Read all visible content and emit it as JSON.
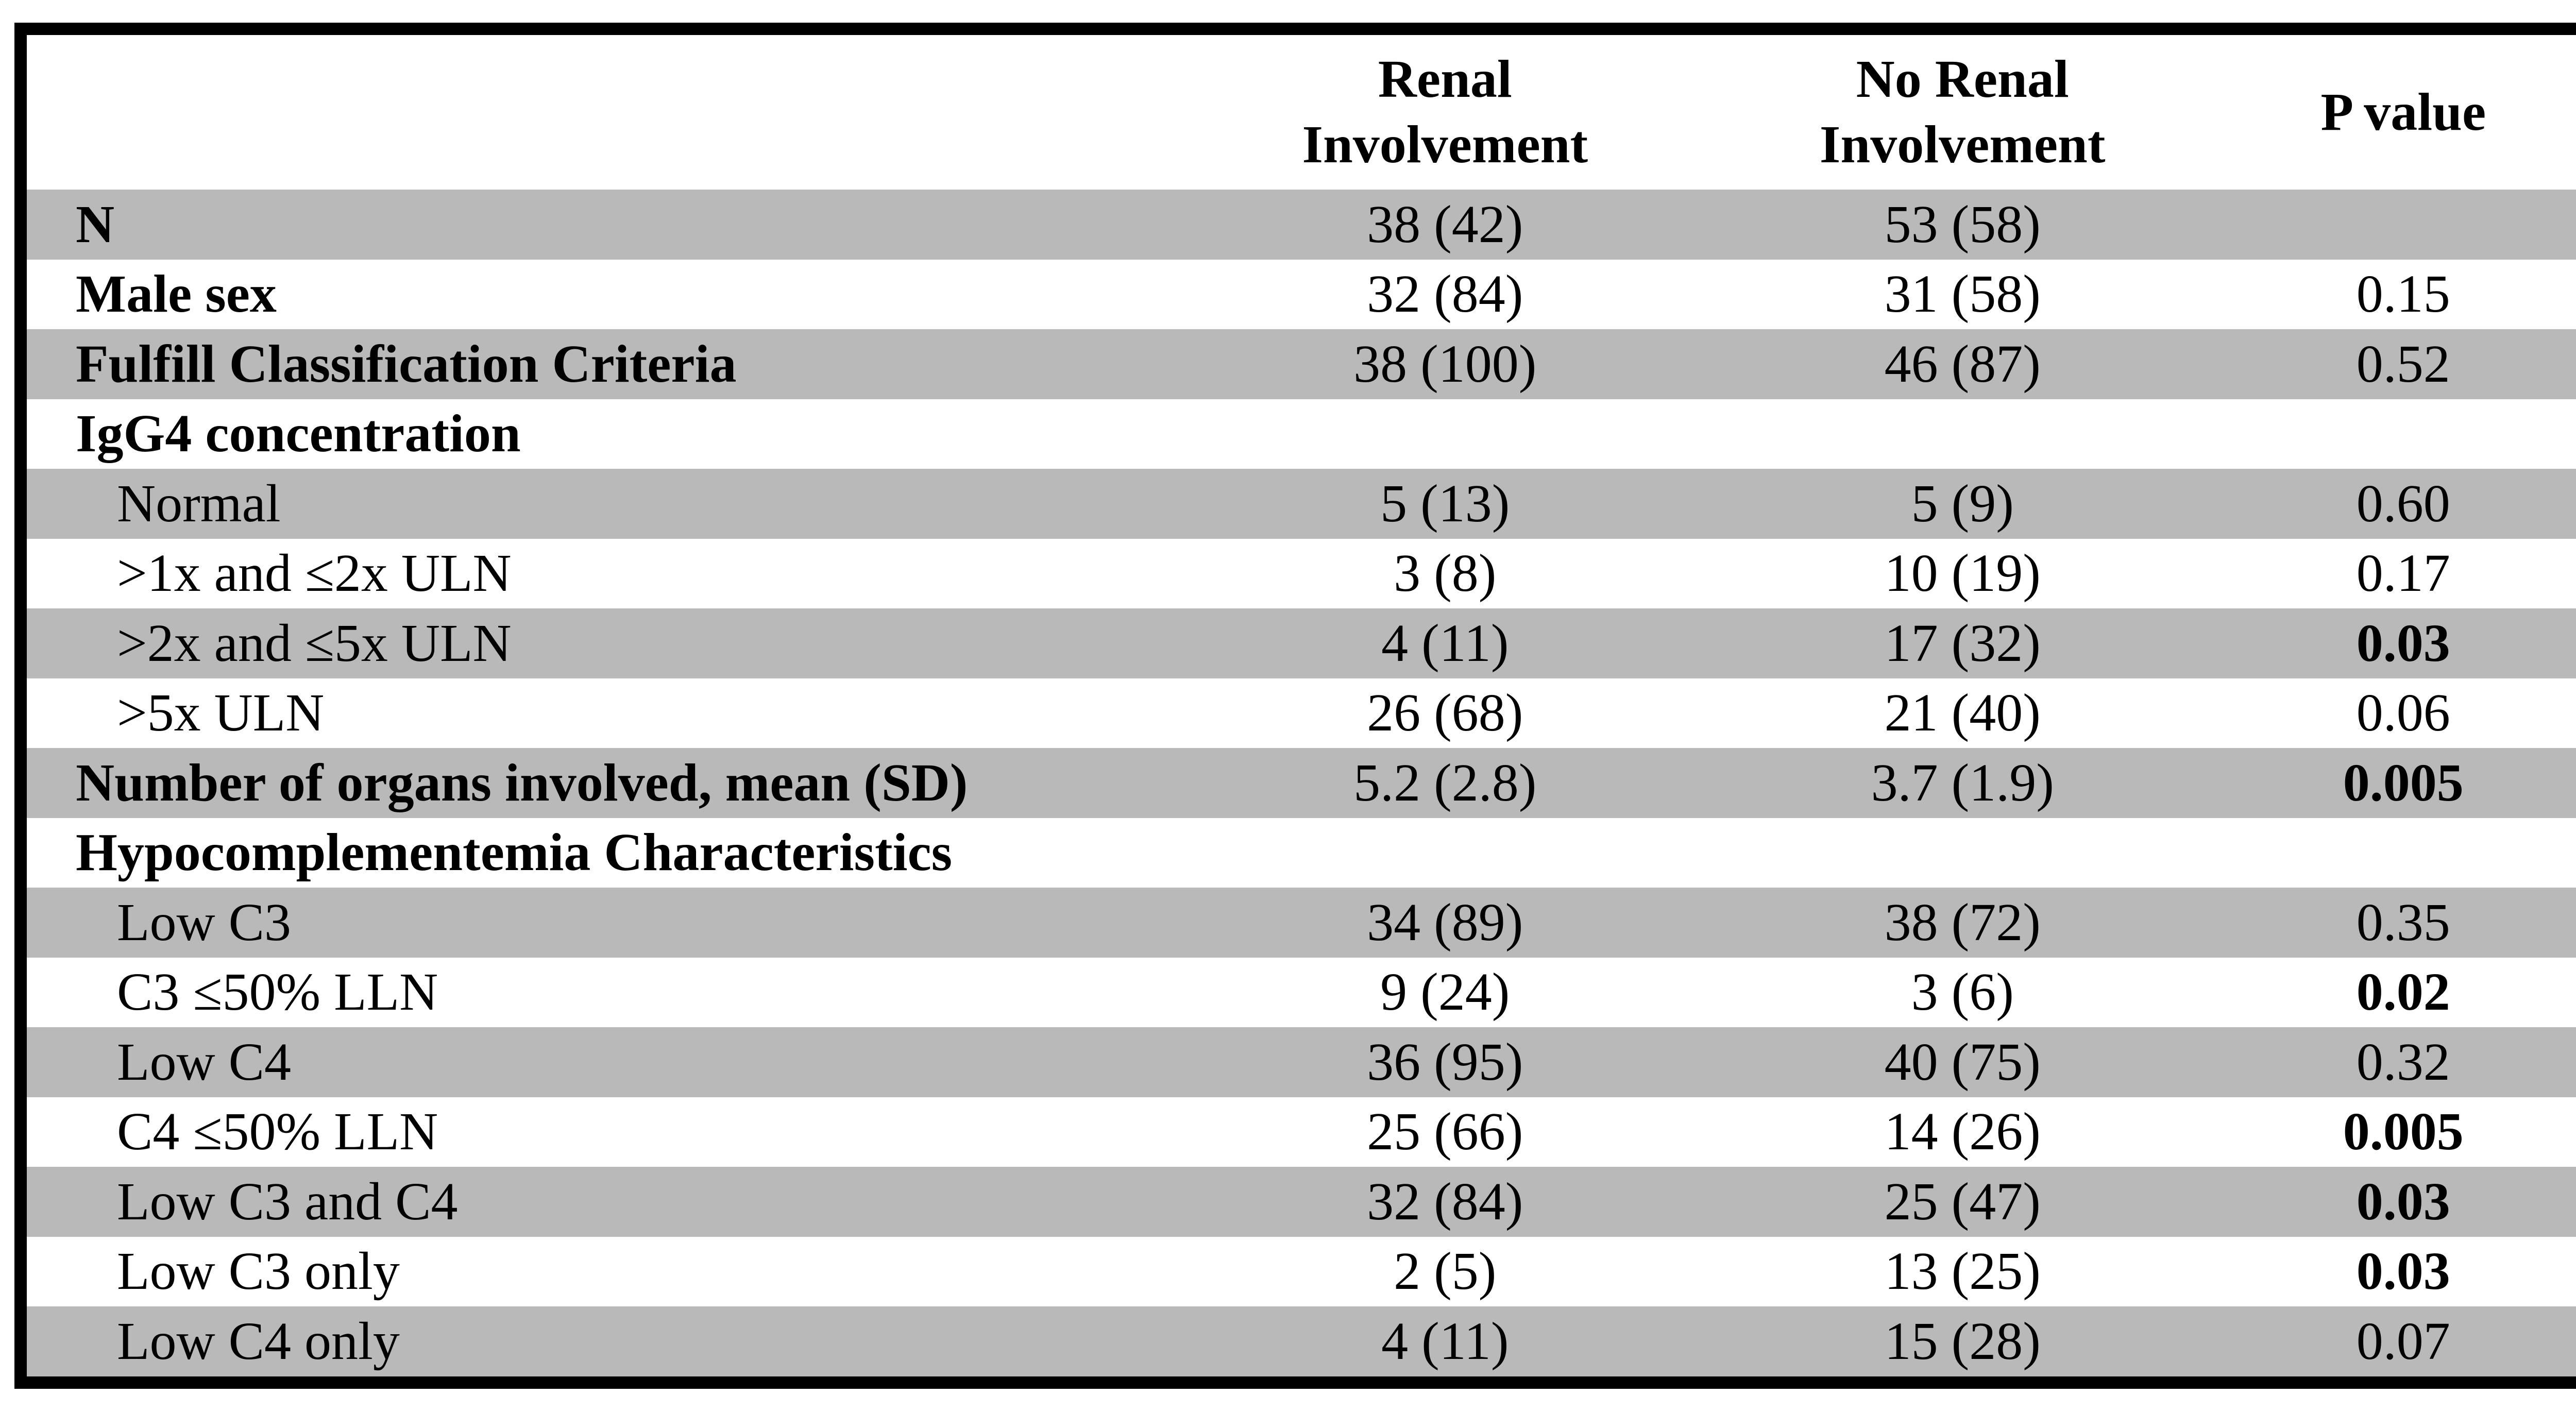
{
  "table": {
    "stripe_color": "#b9b9b9",
    "border_color": "#000000",
    "columns": [
      "",
      "Renal\nInvolvement",
      "No Renal\nInvolvement",
      "P value"
    ],
    "rows": [
      {
        "label": "N",
        "renal": "38 (42)",
        "no_renal": "53 (58)",
        "p": ""
      },
      {
        "label": "Male sex",
        "renal": "32 (84)",
        "no_renal": "31 (58)",
        "p": "0.15"
      },
      {
        "label": "Fulfill Classification Criteria",
        "renal": "38 (100)",
        "no_renal": "46 (87)",
        "p": "0.52"
      },
      {
        "label": "IgG4 concentration",
        "renal": "",
        "no_renal": "",
        "p": ""
      },
      {
        "label": "Normal",
        "renal": "5 (13)",
        "no_renal": "5 (9)",
        "p": "0.60"
      },
      {
        "label": ">1x and ≤2x ULN",
        "renal": "3 (8)",
        "no_renal": "10 (19)",
        "p": "0.17"
      },
      {
        "label": ">2x and ≤5x ULN",
        "renal": "4 (11)",
        "no_renal": "17 (32)",
        "p": "0.03"
      },
      {
        "label": ">5x ULN",
        "renal": "26 (68)",
        "no_renal": "21 (40)",
        "p": "0.06"
      },
      {
        "label": "Number of organs involved, mean (SD)",
        "renal": "5.2 (2.8)",
        "no_renal": "3.7 (1.9)",
        "p": "0.005"
      },
      {
        "label": "Hypocomplementemia Characteristics",
        "renal": "",
        "no_renal": "",
        "p": ""
      },
      {
        "label": "Low C3",
        "renal": "34 (89)",
        "no_renal": "38 (72)",
        "p": "0.35"
      },
      {
        "label": "C3 ≤50% LLN",
        "renal": "9 (24)",
        "no_renal": "3 (6)",
        "p": "0.02"
      },
      {
        "label": "Low C4",
        "renal": "36 (95)",
        "no_renal": "40 (75)",
        "p": "0.32"
      },
      {
        "label": "C4 ≤50% LLN",
        "renal": "25 (66)",
        "no_renal": "14 (26)",
        "p": "0.005"
      },
      {
        "label": "Low C3 and C4",
        "renal": "32 (84)",
        "no_renal": "25 (47)",
        "p": "0.03"
      },
      {
        "label": "Low C3 only",
        "renal": "2 (5)",
        "no_renal": "13 (25)",
        "p": "0.03"
      },
      {
        "label": "Low C4 only",
        "renal": "4 (11)",
        "no_renal": "15 (28)",
        "p": "0.07"
      }
    ]
  }
}
